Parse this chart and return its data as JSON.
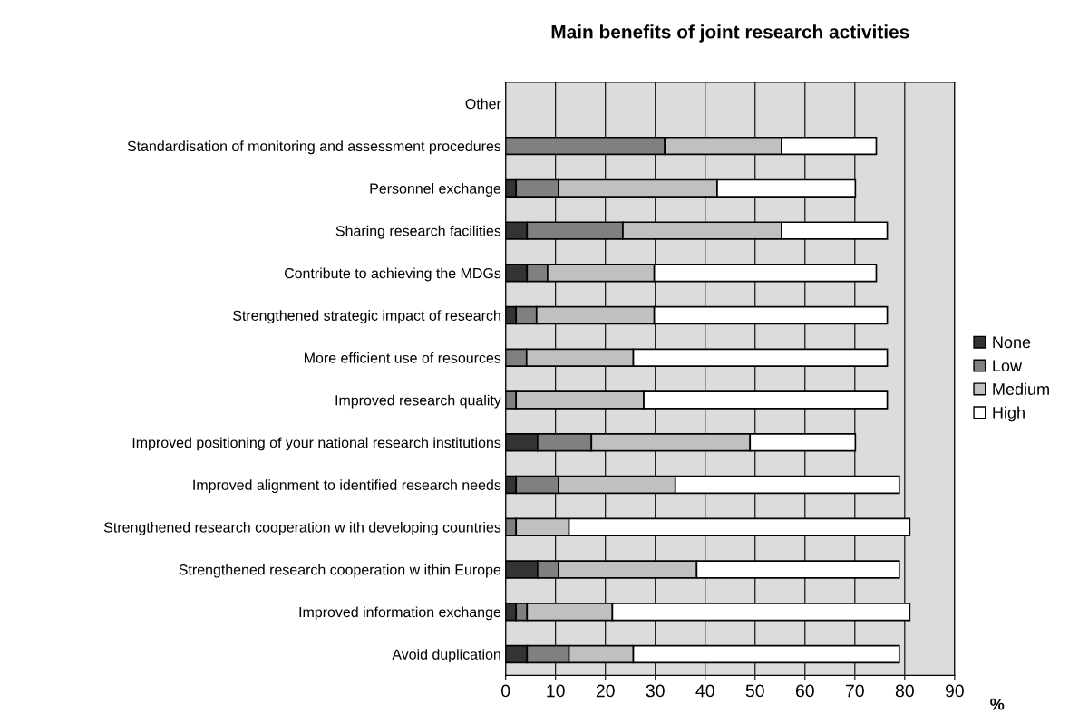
{
  "chart_data": {
    "type": "bar",
    "orientation": "horizontal",
    "stacked": true,
    "title": "Main benefits of joint research activities",
    "xlabel": "%",
    "categories": [
      "Other",
      "Standardisation of monitoring and assessment procedures",
      "Personnel exchange",
      "Sharing research facilities",
      "Contribute to achieving the MDGs",
      "Strengthened strategic impact of research",
      "More efficient use of resources",
      "Improved research quality",
      "Improved positioning of your national research institutions",
      "Improved alignment to identified research needs",
      "Strengthened research cooperation w ith developing countries",
      "Strengthened research cooperation w ithin Europe",
      "Improved information exchange",
      "Avoid duplication"
    ],
    "series": [
      {
        "name": "None",
        "color": "#333333",
        "values": [
          null,
          0,
          2.1,
          4.3,
          4.3,
          2.1,
          0,
          0,
          6.4,
          2.1,
          0,
          6.4,
          2.1,
          4.3
        ]
      },
      {
        "name": "Low",
        "color": "#808080",
        "values": [
          null,
          31.9,
          8.5,
          19.2,
          4.1,
          4.1,
          4.2,
          2.1,
          10.8,
          8.5,
          2.1,
          4.2,
          2.2,
          8.4
        ]
      },
      {
        "name": "Medium",
        "color": "#c0c0c0",
        "values": [
          null,
          23.4,
          31.8,
          31.8,
          21.4,
          23.6,
          21.4,
          25.6,
          31.8,
          23.4,
          10.6,
          27.7,
          17.1,
          12.9
        ]
      },
      {
        "name": "High",
        "color": "#ffffff",
        "values": [
          null,
          19.0,
          27.7,
          21.2,
          44.5,
          46.7,
          50.9,
          48.8,
          21.1,
          44.9,
          68.3,
          40.6,
          59.6,
          53.3
        ]
      }
    ],
    "xlim": [
      0,
      90
    ],
    "xticks": [
      0,
      10,
      20,
      30,
      40,
      50,
      60,
      70,
      80,
      90
    ],
    "grid": "x",
    "legend": "right"
  }
}
